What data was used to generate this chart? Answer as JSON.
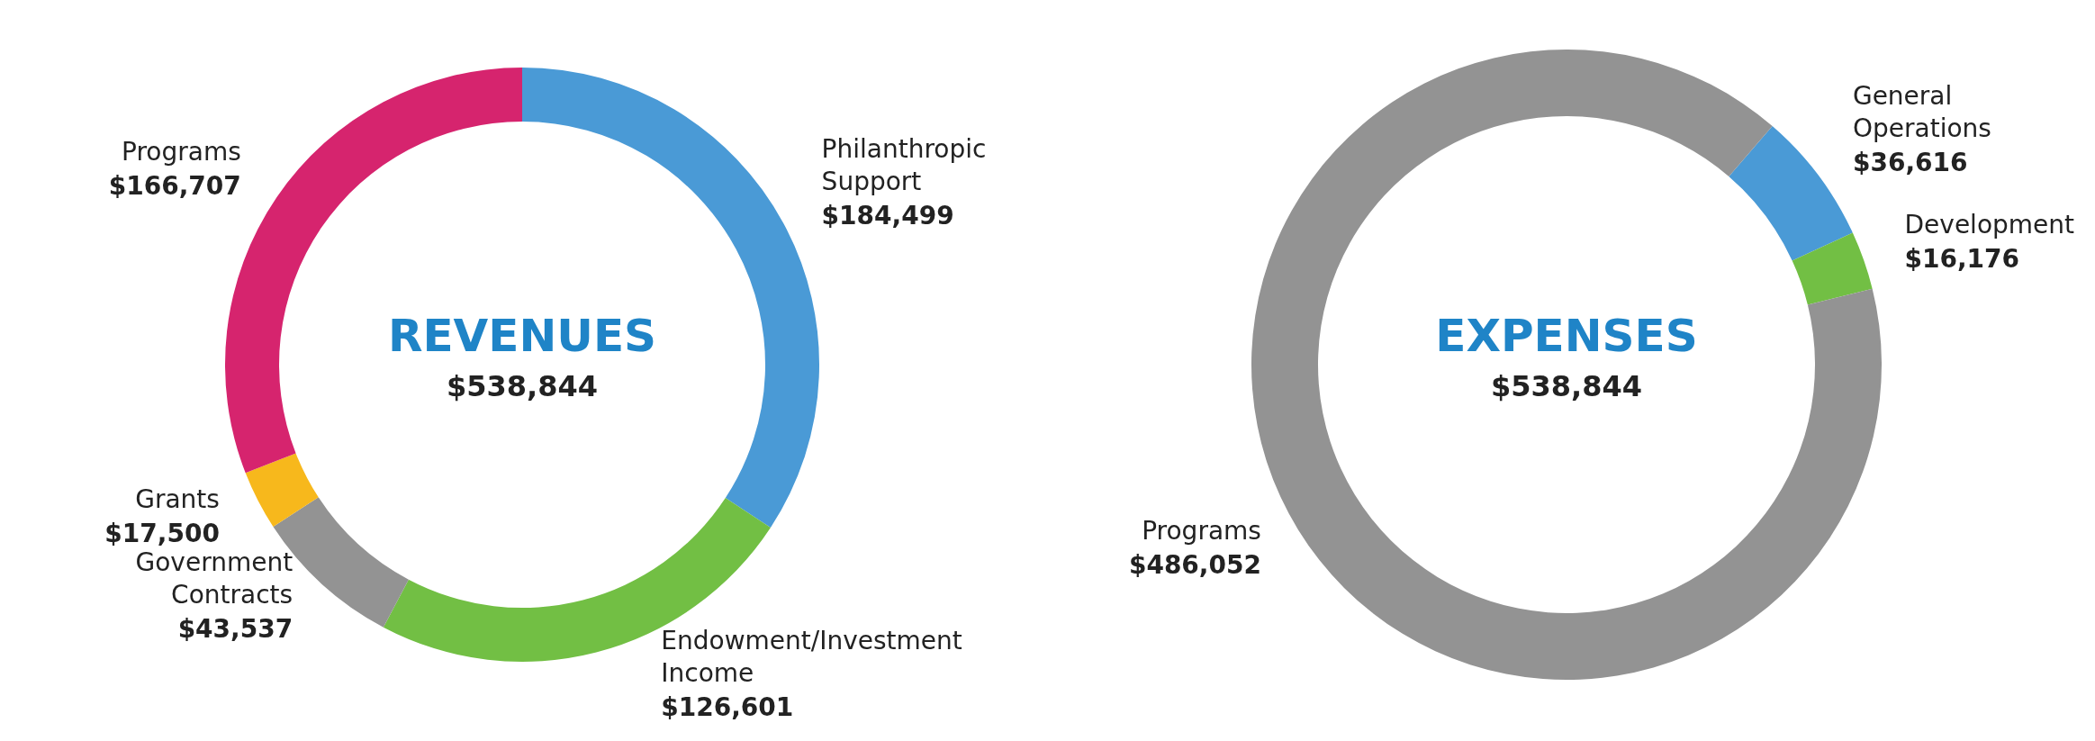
{
  "chart_data": [
    {
      "type": "donut",
      "title": "REVENUES",
      "annotations": [
        "$538,844"
      ],
      "categories": [
        "Philanthropic\nSupport",
        "Endowment/Investment\nIncome",
        "Government\nContracts",
        "Grants",
        "Programs"
      ],
      "values": [
        184499,
        126601,
        43537,
        17500,
        166707
      ],
      "value_labels": [
        "$184,499",
        "$126,601",
        "$43,537",
        "$17,500",
        "$166,707"
      ],
      "colors": [
        "#4a9ad6",
        "#72bf44",
        "#939393",
        "#f7b81c",
        "#d6246e"
      ]
    },
    {
      "type": "donut",
      "title": "EXPENSES",
      "annotations": [
        "$538,844"
      ],
      "categories": [
        "General\nOperations",
        "Development",
        "Programs"
      ],
      "values": [
        36616,
        16176,
        486052
      ],
      "value_labels": [
        "$36,616",
        "$16,176",
        "$486,052"
      ],
      "colors": [
        "#4a9ad6",
        "#72bf44",
        "#939393"
      ]
    }
  ]
}
